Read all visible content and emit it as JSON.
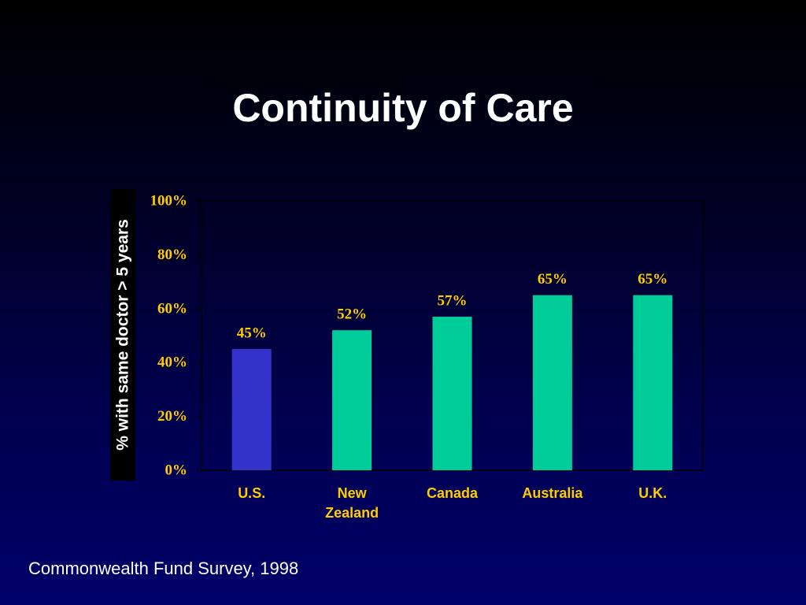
{
  "slide": {
    "title": "Continuity of Care",
    "source": "Commonwealth Fund Survey, 1998"
  },
  "chart_data": {
    "type": "bar",
    "title": "",
    "xlabel": "",
    "ylabel": "% with same doctor > 5 years",
    "categories": [
      [
        "U.S."
      ],
      [
        "New",
        "Zealand"
      ],
      [
        "Canada"
      ],
      [
        "Australia"
      ],
      [
        "U.K."
      ]
    ],
    "values": [
      45,
      52,
      57,
      65,
      65
    ],
    "data_labels": [
      "45%",
      "52%",
      "57%",
      "65%",
      "65%"
    ],
    "bar_colors": [
      "#3333cc",
      "#00cc99",
      "#00cc99",
      "#00cc99",
      "#00cc99"
    ],
    "ylim": [
      0,
      100
    ],
    "yticks": [
      0,
      20,
      40,
      60,
      80,
      100
    ],
    "ytick_labels": [
      "0%",
      "20%",
      "40%",
      "60%",
      "80%",
      "100%"
    ],
    "grid": false,
    "legend": "none",
    "colors": {
      "tick_label": "#ffcc00",
      "data_label": "#ffcc00",
      "category_label": "#ffcc00",
      "axis_line": "#000000",
      "ylabel_text": "#ffffff",
      "ylabel_background": "#000000"
    }
  }
}
